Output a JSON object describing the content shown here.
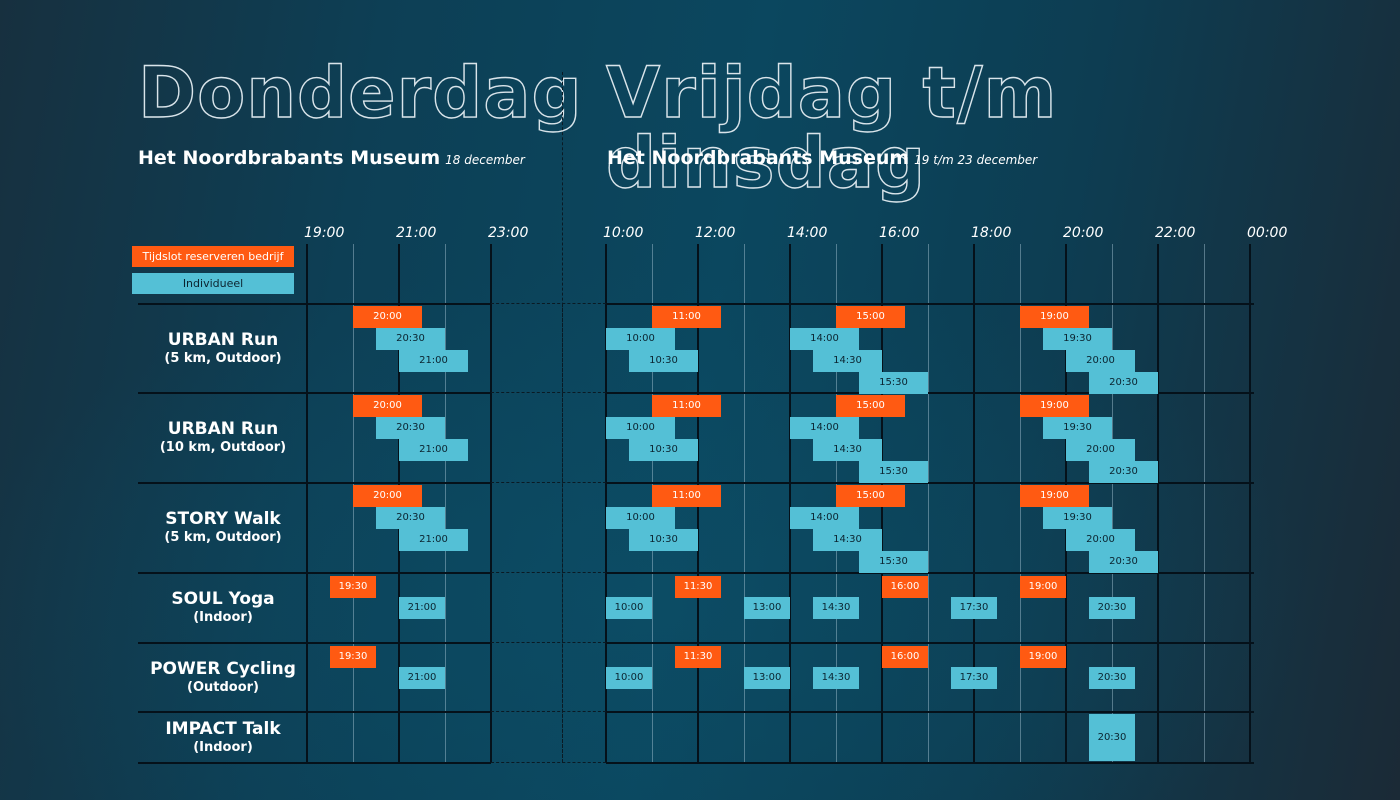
{
  "headers": {
    "left": {
      "title": "Donderdag",
      "venue": "Het Noordbrabants Museum",
      "date": "18 december"
    },
    "right": {
      "title": "Vrijdag t/m dinsdag",
      "venue": "Het Noordbrabants Museum",
      "date": "19 t/m 23 december"
    }
  },
  "legend": {
    "company": "Tijdslot reserveren bedrijf",
    "individual": "Individueel"
  },
  "colors": {
    "company": "#ff5a12",
    "individual": "#54c0d6",
    "grid": "#05111a",
    "background": "#0b475f"
  },
  "axes": {
    "left": {
      "ticks": [
        "19:00",
        "21:00",
        "23:00"
      ]
    },
    "right": {
      "ticks": [
        "10:00",
        "12:00",
        "14:00",
        "16:00",
        "18:00",
        "20:00",
        "22:00",
        "00:00"
      ]
    }
  },
  "rows": [
    {
      "name": "URBAN Run",
      "sub": "(5 km, Outdoor)",
      "left": [
        {
          "time": "20:00",
          "type": "company",
          "lane": 0
        },
        {
          "time": "20:30",
          "type": "individual",
          "lane": 1
        },
        {
          "time": "21:00",
          "type": "individual",
          "lane": 2
        }
      ],
      "right": [
        {
          "time": "11:00",
          "type": "company",
          "lane": 0
        },
        {
          "time": "10:00",
          "type": "individual",
          "lane": 1
        },
        {
          "time": "10:30",
          "type": "individual",
          "lane": 2
        },
        {
          "time": "15:00",
          "type": "company",
          "lane": 0
        },
        {
          "time": "14:00",
          "type": "individual",
          "lane": 1
        },
        {
          "time": "14:30",
          "type": "individual",
          "lane": 2
        },
        {
          "time": "15:30",
          "type": "individual",
          "lane": 3
        },
        {
          "time": "19:00",
          "type": "company",
          "lane": 0
        },
        {
          "time": "19:30",
          "type": "individual",
          "lane": 1
        },
        {
          "time": "20:00",
          "type": "individual",
          "lane": 2
        },
        {
          "time": "20:30",
          "type": "individual",
          "lane": 3
        }
      ]
    },
    {
      "name": "URBAN Run",
      "sub": "(10 km, Outdoor)",
      "left": [
        {
          "time": "20:00",
          "type": "company",
          "lane": 0
        },
        {
          "time": "20:30",
          "type": "individual",
          "lane": 1
        },
        {
          "time": "21:00",
          "type": "individual",
          "lane": 2
        }
      ],
      "right": [
        {
          "time": "11:00",
          "type": "company",
          "lane": 0
        },
        {
          "time": "10:00",
          "type": "individual",
          "lane": 1
        },
        {
          "time": "10:30",
          "type": "individual",
          "lane": 2
        },
        {
          "time": "15:00",
          "type": "company",
          "lane": 0
        },
        {
          "time": "14:00",
          "type": "individual",
          "lane": 1
        },
        {
          "time": "14:30",
          "type": "individual",
          "lane": 2
        },
        {
          "time": "15:30",
          "type": "individual",
          "lane": 3
        },
        {
          "time": "19:00",
          "type": "company",
          "lane": 0
        },
        {
          "time": "19:30",
          "type": "individual",
          "lane": 1
        },
        {
          "time": "20:00",
          "type": "individual",
          "lane": 2
        },
        {
          "time": "20:30",
          "type": "individual",
          "lane": 3
        }
      ]
    },
    {
      "name": "STORY Walk",
      "sub": "(5 km, Outdoor)",
      "left": [
        {
          "time": "20:00",
          "type": "company",
          "lane": 0
        },
        {
          "time": "20:30",
          "type": "individual",
          "lane": 1
        },
        {
          "time": "21:00",
          "type": "individual",
          "lane": 2
        }
      ],
      "right": [
        {
          "time": "11:00",
          "type": "company",
          "lane": 0
        },
        {
          "time": "10:00",
          "type": "individual",
          "lane": 1
        },
        {
          "time": "10:30",
          "type": "individual",
          "lane": 2
        },
        {
          "time": "15:00",
          "type": "company",
          "lane": 0
        },
        {
          "time": "14:00",
          "type": "individual",
          "lane": 1
        },
        {
          "time": "14:30",
          "type": "individual",
          "lane": 2
        },
        {
          "time": "15:30",
          "type": "individual",
          "lane": 3
        },
        {
          "time": "19:00",
          "type": "company",
          "lane": 0
        },
        {
          "time": "19:30",
          "type": "individual",
          "lane": 1
        },
        {
          "time": "20:00",
          "type": "individual",
          "lane": 2
        },
        {
          "time": "20:30",
          "type": "individual",
          "lane": 3
        }
      ]
    },
    {
      "name": "SOUL Yoga",
      "sub": "(Indoor)",
      "left": [
        {
          "time": "19:30",
          "type": "company",
          "lane": 0
        },
        {
          "time": "21:00",
          "type": "individual",
          "lane": 1
        }
      ],
      "right": [
        {
          "time": "10:00",
          "type": "individual",
          "lane": 1
        },
        {
          "time": "11:30",
          "type": "company",
          "lane": 0
        },
        {
          "time": "13:00",
          "type": "individual",
          "lane": 1
        },
        {
          "time": "14:30",
          "type": "individual",
          "lane": 1
        },
        {
          "time": "16:00",
          "type": "company",
          "lane": 0
        },
        {
          "time": "17:30",
          "type": "individual",
          "lane": 1
        },
        {
          "time": "19:00",
          "type": "company",
          "lane": 0
        },
        {
          "time": "20:30",
          "type": "individual",
          "lane": 1
        }
      ]
    },
    {
      "name": "POWER Cycling",
      "sub": "(Outdoor)",
      "left": [
        {
          "time": "19:30",
          "type": "company",
          "lane": 0
        },
        {
          "time": "21:00",
          "type": "individual",
          "lane": 1
        }
      ],
      "right": [
        {
          "time": "10:00",
          "type": "individual",
          "lane": 1
        },
        {
          "time": "11:30",
          "type": "company",
          "lane": 0
        },
        {
          "time": "13:00",
          "type": "individual",
          "lane": 1
        },
        {
          "time": "14:30",
          "type": "individual",
          "lane": 1
        },
        {
          "time": "16:00",
          "type": "company",
          "lane": 0
        },
        {
          "time": "17:30",
          "type": "individual",
          "lane": 1
        },
        {
          "time": "19:00",
          "type": "company",
          "lane": 0
        },
        {
          "time": "20:30",
          "type": "individual",
          "lane": 1
        }
      ]
    },
    {
      "name": "IMPACT Talk",
      "sub": "(Indoor)",
      "left": [],
      "right": [
        {
          "time": "20:30",
          "type": "individual",
          "lane": "full"
        }
      ]
    }
  ]
}
